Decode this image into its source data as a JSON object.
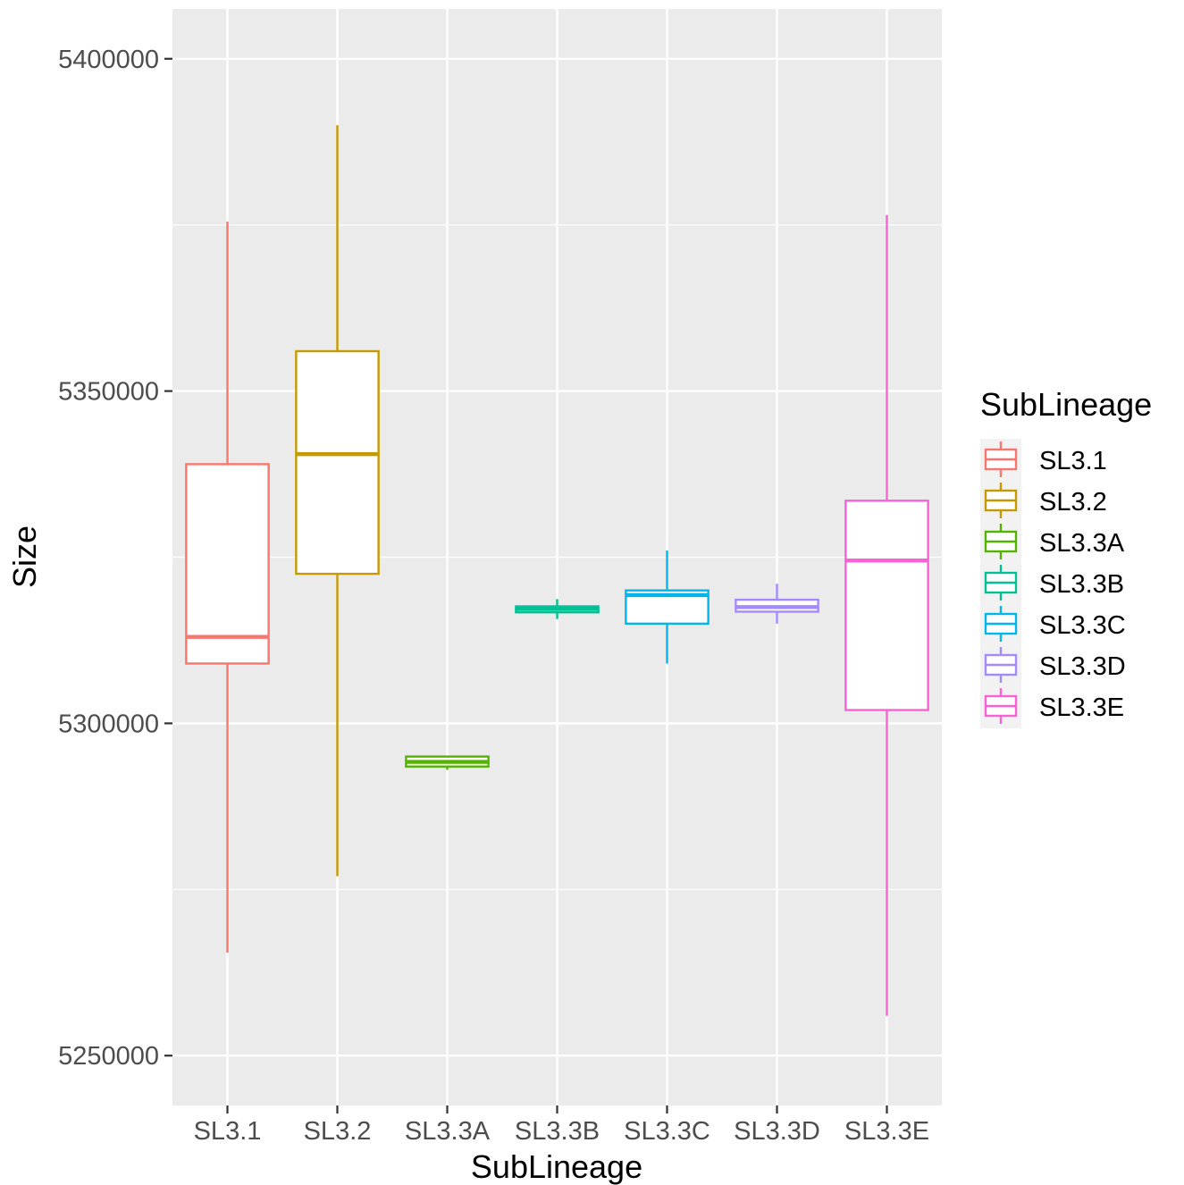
{
  "chart_data": {
    "type": "boxplot",
    "title": "",
    "xlabel": "SubLineage",
    "ylabel": "Size",
    "ylim": [
      5242500,
      5407500
    ],
    "y_ticks": [
      5250000,
      5300000,
      5350000,
      5400000
    ],
    "y_tick_labels": [
      "5250000",
      "5300000",
      "5350000",
      "5400000"
    ],
    "categories": [
      "SL3.1",
      "SL3.2",
      "SL3.3A",
      "SL3.3B",
      "SL3.3C",
      "SL3.3D",
      "SL3.3E"
    ],
    "legend": {
      "title": "SubLineage",
      "position": "right"
    },
    "grid": true,
    "series": [
      {
        "name": "SL3.1",
        "color": "#F8766D",
        "min": 5265500,
        "q1": 5309000,
        "median": 5313000,
        "q3": 5339000,
        "max": 5375500
      },
      {
        "name": "SL3.2",
        "color": "#C49A00",
        "min": 5277000,
        "q1": 5322500,
        "median": 5340500,
        "q3": 5356000,
        "max": 5390000
      },
      {
        "name": "SL3.3A",
        "color": "#53B400",
        "min": 5293000,
        "q1": 5293500,
        "median": 5294200,
        "q3": 5295000,
        "max": 5295000
      },
      {
        "name": "SL3.3B",
        "color": "#00C094",
        "min": 5315700,
        "q1": 5316700,
        "median": 5317200,
        "q3": 5317600,
        "max": 5318700
      },
      {
        "name": "SL3.3C",
        "color": "#00B6EB",
        "min": 5309000,
        "q1": 5315000,
        "median": 5319300,
        "q3": 5320000,
        "max": 5326000
      },
      {
        "name": "SL3.3D",
        "color": "#A58AFF",
        "min": 5315000,
        "q1": 5316800,
        "median": 5317500,
        "q3": 5318600,
        "max": 5321000
      },
      {
        "name": "SL3.3E",
        "color": "#FB61D7",
        "min": 5256000,
        "q1": 5302000,
        "median": 5324500,
        "q3": 5333500,
        "max": 5376500
      }
    ]
  }
}
